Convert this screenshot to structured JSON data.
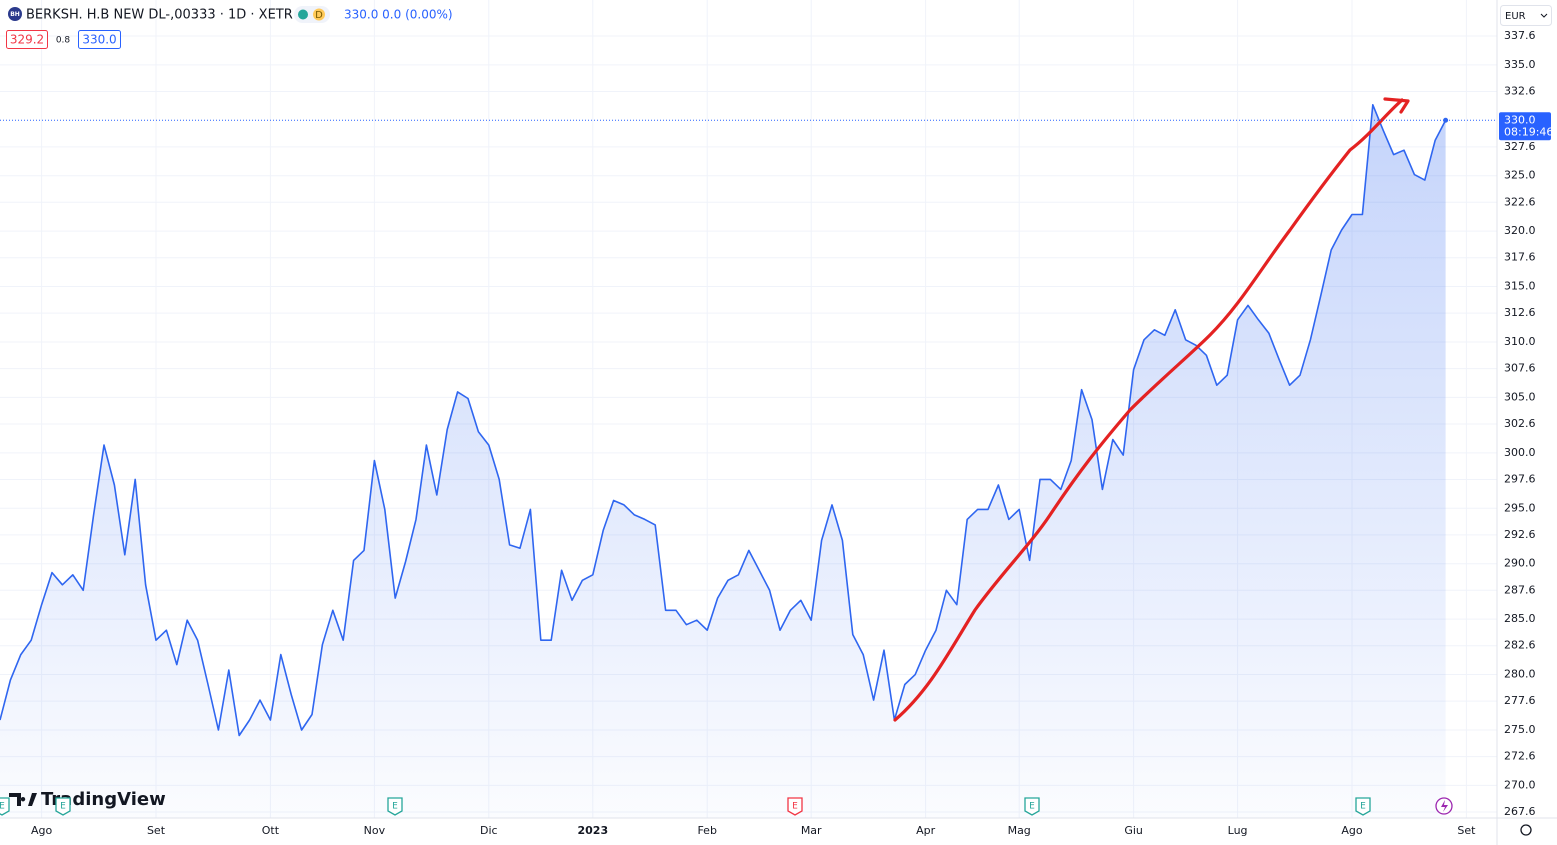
{
  "header": {
    "logo": "BH",
    "title": "BERKSH. H.B NEW DL-,00333 · 1D · XETR",
    "badge": "D",
    "legend": "330.0 0.0 (0.00%)",
    "bid": "329.2",
    "spread": "0.8",
    "ask": "330.0",
    "currency": "EUR",
    "watermark": "TradingView",
    "events": [
      "E",
      "E",
      "E",
      "E",
      "E",
      "E"
    ]
  },
  "chart_data": {
    "type": "area",
    "color": "#2f66f0",
    "categories": [
      null,
      null,
      null,
      null,
      "Ago",
      null,
      null,
      null,
      null,
      null,
      null,
      null,
      null,
      null,
      null,
      "Set",
      null,
      null,
      null,
      null,
      null,
      null,
      null,
      null,
      null,
      null,
      "Ott",
      null,
      null,
      null,
      null,
      null,
      null,
      null,
      null,
      null,
      "Nov",
      null,
      null,
      null,
      null,
      null,
      null,
      null,
      null,
      null,
      null,
      "Dic",
      null,
      null,
      null,
      null,
      null,
      null,
      null,
      null,
      null,
      "2023",
      null,
      null,
      null,
      null,
      null,
      null,
      null,
      null,
      null,
      null,
      "Feb",
      null,
      null,
      null,
      null,
      null,
      null,
      null,
      null,
      null,
      "Mar",
      null,
      null,
      null,
      null,
      null,
      null,
      null,
      null,
      null,
      null,
      "Apr",
      null,
      null,
      null,
      null,
      null,
      null,
      null,
      null,
      "Mag",
      null,
      null,
      null,
      null,
      null,
      null,
      null,
      null,
      null,
      null,
      "Giu",
      null,
      null,
      null,
      null,
      null,
      null,
      null,
      null,
      null,
      "Lug",
      null,
      null,
      null,
      null,
      null,
      null,
      null,
      null,
      null,
      null,
      "Ago",
      null,
      null,
      null,
      null,
      null,
      null,
      null,
      null,
      null,
      null,
      "Set"
    ],
    "values": [
      275.9,
      279.5,
      281.8,
      283.1,
      286.3,
      289.2,
      288.1,
      289.0,
      287.6,
      294.4,
      300.7,
      297.1,
      290.8,
      297.6,
      288.1,
      283.1,
      284.0,
      280.9,
      284.9,
      283.1,
      279.1,
      275.0,
      280.4,
      274.5,
      275.9,
      277.7,
      275.9,
      281.8,
      278.2,
      275.0,
      276.4,
      282.7,
      285.8,
      283.1,
      290.3,
      291.2,
      299.3,
      294.9,
      286.9,
      290.2,
      294.0,
      300.7,
      296.2,
      302.1,
      305.5,
      304.9,
      301.9,
      300.7,
      297.6,
      291.7,
      291.4,
      294.9,
      283.1,
      283.1,
      289.4,
      286.7,
      288.5,
      289.0,
      293.0,
      295.7,
      295.3,
      294.4,
      294.0,
      293.5,
      285.8,
      285.8,
      284.5,
      284.9,
      284.0,
      286.9,
      288.5,
      289.0,
      291.2,
      289.4,
      287.6,
      284.0,
      285.8,
      286.7,
      284.9,
      292.1,
      295.3,
      292.1,
      283.6,
      281.8,
      277.7,
      282.2,
      275.9,
      279.1,
      280.0,
      282.2,
      284.0,
      287.6,
      286.3,
      294.0,
      294.9,
      294.9,
      297.1,
      294.0,
      294.9,
      290.3,
      297.6,
      297.6,
      296.7,
      299.3,
      305.7,
      303.0,
      296.7,
      301.2,
      299.8,
      307.5,
      310.2,
      311.1,
      310.6,
      312.9,
      310.2,
      309.7,
      308.8,
      306.1,
      307.0,
      312.0,
      313.3,
      312.0,
      310.8,
      308.4,
      306.1,
      307.0,
      310.2,
      314.2,
      318.3,
      320.1,
      321.5,
      321.5,
      331.4,
      329.1,
      326.9,
      327.3,
      325.1,
      324.6,
      328.2,
      330.0,
      null,
      null
    ],
    "ylim": [
      267.06,
      340.85
    ],
    "yticks": [
      {
        "value": 267.6,
        "label": "267.6"
      },
      {
        "value": 270,
        "label": "270.0"
      },
      272.6,
      {
        "value": 275,
        "label": "275.0"
      },
      277.6,
      {
        "value": 280,
        "label": "280.0"
      },
      282.6,
      {
        "value": 285,
        "label": "285.0"
      },
      287.6,
      {
        "value": 290,
        "label": "290.0"
      },
      292.6,
      {
        "value": 295,
        "label": "295.0"
      },
      297.6,
      {
        "value": 300,
        "label": "300.0"
      },
      302.6,
      {
        "value": 305,
        "label": "305.0"
      },
      307.6,
      {
        "value": 310,
        "label": "310.0"
      },
      312.6,
      {
        "value": 315,
        "label": "315.0"
      },
      317.6,
      {
        "value": 320,
        "label": "320.0"
      },
      322.6,
      {
        "value": 325,
        "label": "325.0"
      },
      327.6,
      332.6,
      {
        "value": 335,
        "label": "335.0"
      },
      337.6
    ],
    "price_label": {
      "value": 330,
      "label": "330.0"
    },
    "countdown": "08:19:46",
    "grid": true
  }
}
